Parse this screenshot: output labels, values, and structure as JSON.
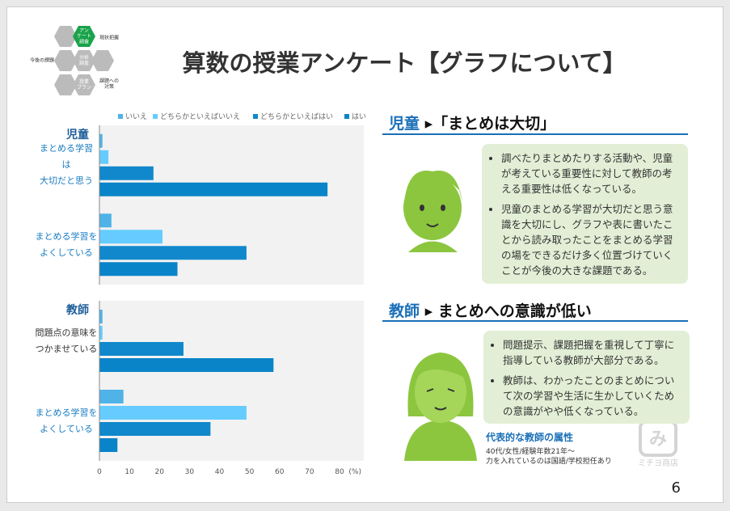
{
  "header": {
    "title": "算数の授業アンケート【グラフについて】",
    "cycle": [
      "アン\nケート\n調査",
      "現状把握",
      "分析\n調査",
      "今後の課題",
      "授業\nプラン",
      "課題への\n対策"
    ]
  },
  "chart_data": [
    {
      "type": "bar",
      "orientation": "horizontal",
      "title": "児童",
      "categories": [
        "まとめる学習\nは\n大切だと思う",
        "まとめる学習を\nよくしている"
      ],
      "category_colors": [
        "#1a7cc0",
        "#1a7cc0"
      ],
      "series": [
        {
          "name": "いいえ",
          "color": "#4fb3e8",
          "values": [
            1,
            4
          ]
        },
        {
          "name": "どちらかといえばいいえ",
          "color": "#66ccff",
          "values": [
            3,
            21
          ]
        },
        {
          "name": "どちらかといえばはい",
          "color": "#1188cc",
          "values": [
            18,
            49
          ]
        },
        {
          "name": "はい",
          "color": "#0a84c8",
          "values": [
            76,
            26
          ]
        }
      ],
      "xlim": [
        0,
        80
      ]
    },
    {
      "type": "bar",
      "orientation": "horizontal",
      "title": "教師",
      "categories": [
        "問題点の意味を\nつかませている",
        "まとめる学習を\nよくしている"
      ],
      "category_colors": [
        "#333333",
        "#1a7cc0"
      ],
      "series": [
        {
          "color": "#4fb3e8",
          "values": [
            1,
            8
          ]
        },
        {
          "color": "#66ccff",
          "values": [
            1,
            49
          ]
        },
        {
          "color": "#1188cc",
          "values": [
            28,
            37
          ]
        },
        {
          "color": "#0a84c8",
          "values": [
            58,
            6
          ]
        }
      ],
      "xlim": [
        0,
        80
      ],
      "xticks": [
        0,
        10,
        20,
        30,
        40,
        50,
        60,
        70,
        80
      ],
      "xlabel": "(%)"
    }
  ],
  "sections": [
    {
      "who": "児童",
      "headline": "「まとめは大切」",
      "bullets": [
        "調べたりまとめたりする活動や、児童が考えている重要性に対して教師の考える重要性は低くなっている。",
        "児童のまとめる学習が大切だと思う意識を大切にし、グラフや表に書いたことから読み取ったことをまとめる学習の場をできるだけ多く位置づけていくことが今後の大きな課題である。"
      ]
    },
    {
      "who": "教師",
      "headline": "まとめへの意識が低い",
      "bullets": [
        "問題提示、課題把握を重視して丁寧に指導している教師が大部分である。",
        "教師は、わかったことのまとめについて次の学習や生活に生かしていくための意識がやや低くなっている。"
      ]
    }
  ],
  "profile": {
    "title": "代表的な教師の属性",
    "lines": [
      "40代/女性/経験年数21年～",
      "力を入れているのは国語/学校担任あり"
    ]
  },
  "watermark": "ミチヨ商店",
  "page_number": "6"
}
